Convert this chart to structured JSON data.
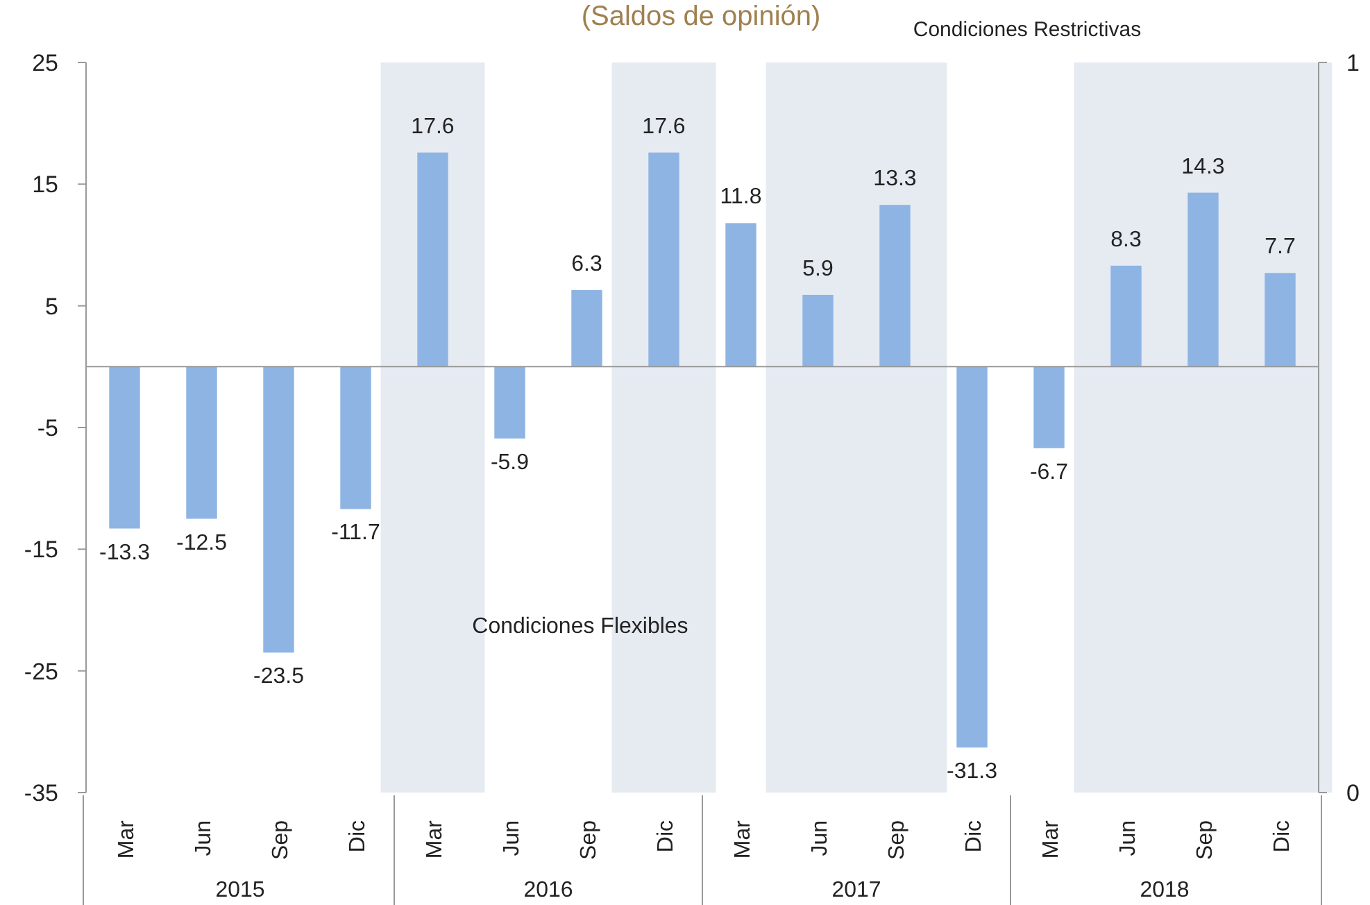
{
  "chart_data": {
    "type": "bar",
    "title": "(Saldos de opinión)",
    "categories": [
      "Mar",
      "Jun",
      "Sep",
      "Dic",
      "Mar",
      "Jun",
      "Sep",
      "Dic",
      "Mar",
      "Jun",
      "Sep",
      "Dic",
      "Mar",
      "Jun",
      "Sep",
      "Dic"
    ],
    "series": [
      {
        "axis": "y2",
        "color": "#e6ebf2",
        "values": [
          null,
          null,
          null,
          null,
          1,
          null,
          null,
          1,
          null,
          1,
          1,
          null,
          null,
          1,
          1,
          1
        ]
      },
      {
        "color": "#8eb4e3",
        "values": [
          -13.3,
          -12.5,
          -23.5,
          -11.7,
          17.6,
          -5.9,
          6.3,
          17.6,
          11.8,
          5.9,
          13.3,
          -31.3,
          -6.7,
          8.3,
          14.3,
          7.7
        ],
        "value_labels": [
          "-13.3",
          "-12.5",
          "-23.5",
          "-11.7",
          "17.6",
          "-5.9",
          "6.3",
          "17.6",
          "11.8",
          "5.9",
          "13.3",
          "-31.3",
          "-6.7",
          "8.3",
          "14.3",
          "7.7"
        ]
      }
    ],
    "ylim": [
      -35,
      25
    ],
    "yticks": [
      -35,
      -25,
      -15,
      -5,
      5,
      15,
      25
    ],
    "y2lim": [
      0,
      1
    ],
    "y2ticks": [
      0,
      1
    ],
    "annotations": [
      "Condiciones Restrictivas",
      "Condiciones Flexibles",
      "2015",
      "2016",
      "2017",
      "2018"
    ],
    "grid": false
  }
}
